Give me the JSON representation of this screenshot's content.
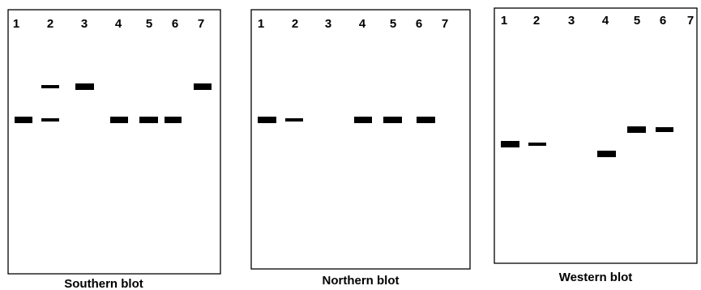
{
  "blots": [
    {
      "title": "Southern blot",
      "lanes": [
        "1",
        "2",
        "3",
        "4",
        "5",
        "6",
        "7"
      ]
    },
    {
      "title": "Northern blot",
      "lanes": [
        "1",
        "2",
        "3",
        "4",
        "5",
        "6",
        "7"
      ]
    },
    {
      "title": "Western blot",
      "lanes": [
        "1",
        "2",
        "3",
        "4",
        "5",
        "6",
        "7"
      ]
    }
  ]
}
